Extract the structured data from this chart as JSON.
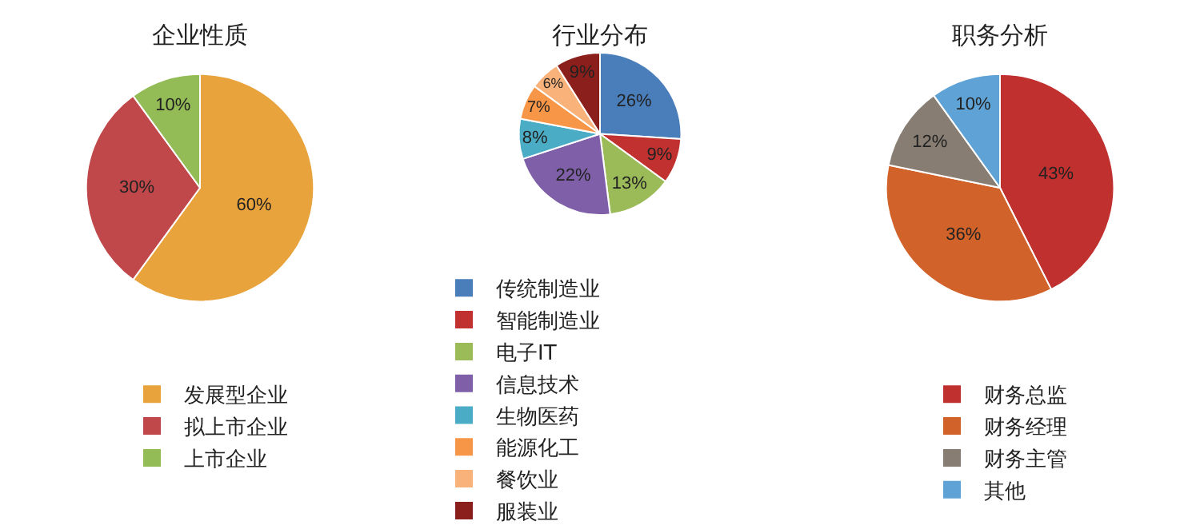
{
  "chart_data": [
    {
      "type": "pie",
      "title": "企业性质",
      "categories": [
        "发展型企业",
        "拟上市企业",
        "上市企业"
      ],
      "values": [
        60,
        30,
        10
      ],
      "value_labels": [
        "60%",
        "30%",
        "10%"
      ],
      "colors": [
        "#e8a33c",
        "#c0474a",
        "#93bb56"
      ],
      "legend": "bottom"
    },
    {
      "type": "pie",
      "title": "行业分布",
      "categories": [
        "传统制造业",
        "智能制造业",
        "电子IT",
        "信息技术",
        "生物医药",
        "能源化工",
        "餐饮业",
        "服装业"
      ],
      "values": [
        26,
        9,
        13,
        22,
        8,
        7,
        6,
        9
      ],
      "value_labels": [
        "26%",
        "9%",
        "13%",
        "22%",
        "8%",
        "7%",
        "6%",
        "9%"
      ],
      "colors": [
        "#4a7ebb",
        "#c0312f",
        "#9bbb59",
        "#7f60a8",
        "#4bacc6",
        "#f79646",
        "#f9b27a",
        "#8b1f1b"
      ],
      "legend": "bottom"
    },
    {
      "type": "pie",
      "title": "职务分析",
      "categories": [
        "财务总监",
        "财务经理",
        "财务主管",
        "其他"
      ],
      "values": [
        43,
        36,
        12,
        10
      ],
      "value_labels": [
        "43%",
        "36%",
        "12%",
        "10%"
      ],
      "colors": [
        "#c0302f",
        "#d0622a",
        "#877d72",
        "#5fa3d6"
      ],
      "legend": "bottom"
    }
  ]
}
